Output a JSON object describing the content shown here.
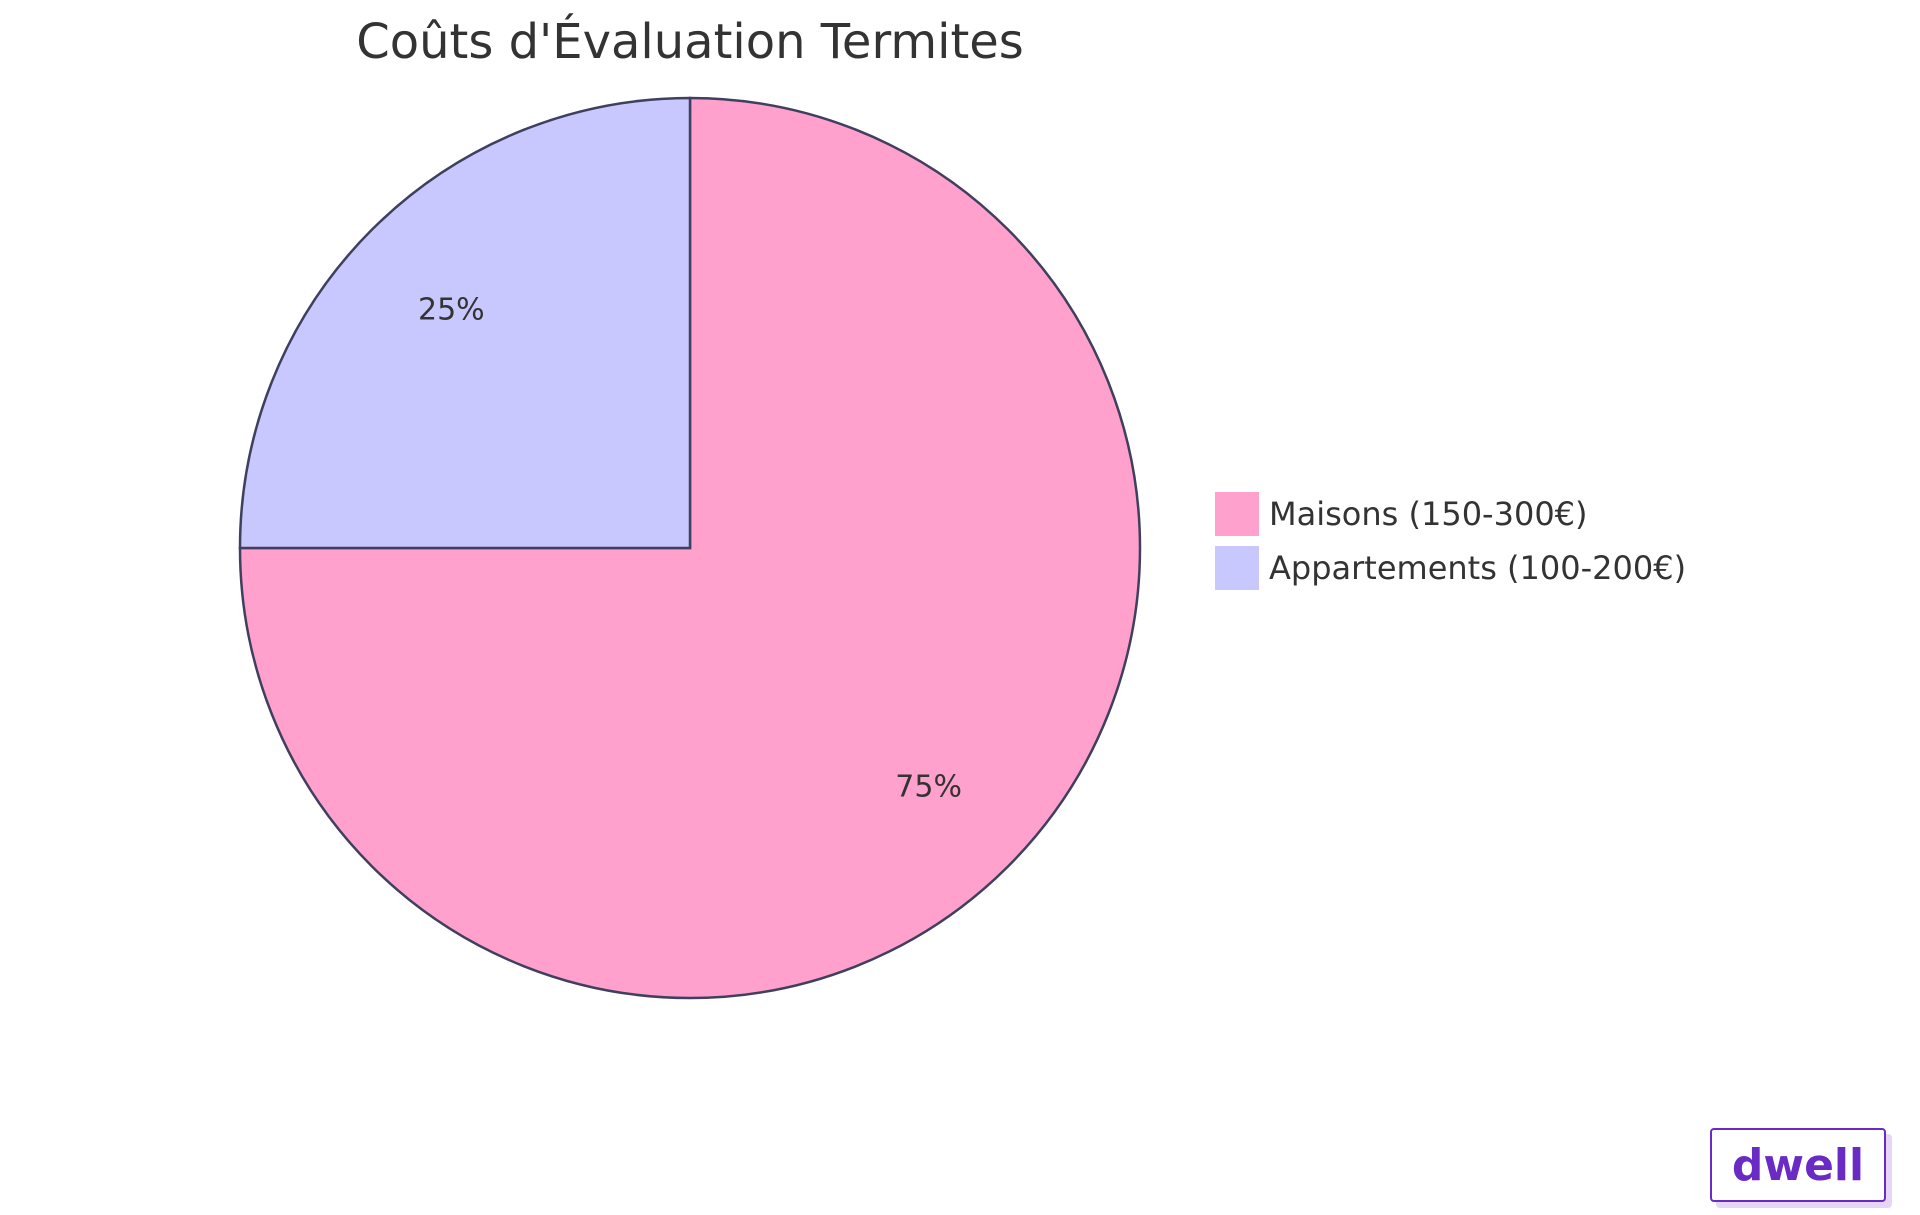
{
  "chart_data": {
    "type": "pie",
    "title": "Coûts d'Évaluation Termites",
    "slices": [
      {
        "label": "Maisons (150-300€)",
        "value": 75,
        "display": "75%",
        "color": "#ffa1cc"
      },
      {
        "label": "Appartements (100-200€)",
        "value": 25,
        "display": "25%",
        "color": "#c8c8ff"
      }
    ],
    "legend_position": "right"
  },
  "watermark": {
    "text": "dwell"
  },
  "colors": {
    "outline": "#3f3f5f",
    "text": "#333333",
    "brand": "#6a2bc4"
  }
}
